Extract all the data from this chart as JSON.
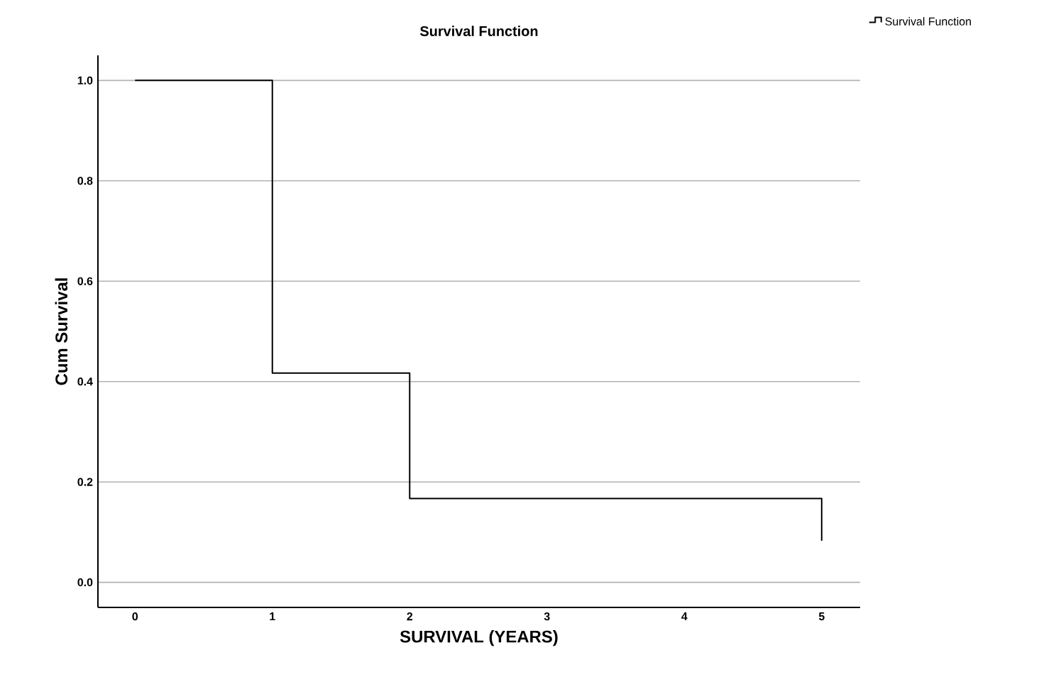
{
  "chart_data": {
    "type": "step",
    "title": "Survival Function",
    "xlabel": "SURVIVAL (YEARS)",
    "ylabel": "Cum Survival",
    "series": [
      {
        "name": "Survival Function",
        "color": "#000000",
        "x": [
          0,
          1,
          2,
          5
        ],
        "values": [
          1.0,
          0.417,
          0.167,
          0.083
        ]
      }
    ],
    "xlim": [
      -0.27,
      5.28
    ],
    "ylim": [
      -0.05,
      1.05
    ],
    "xticks": [
      0,
      1,
      2,
      3,
      4,
      5
    ],
    "yticks": [
      {
        "value": 0,
        "label": "0.0"
      },
      0.2,
      0.4,
      0.6,
      0.8,
      {
        "value": 1,
        "label": "1.0"
      }
    ],
    "grid": "y",
    "legend": "top right",
    "marker": "none",
    "line_style": "solid"
  }
}
